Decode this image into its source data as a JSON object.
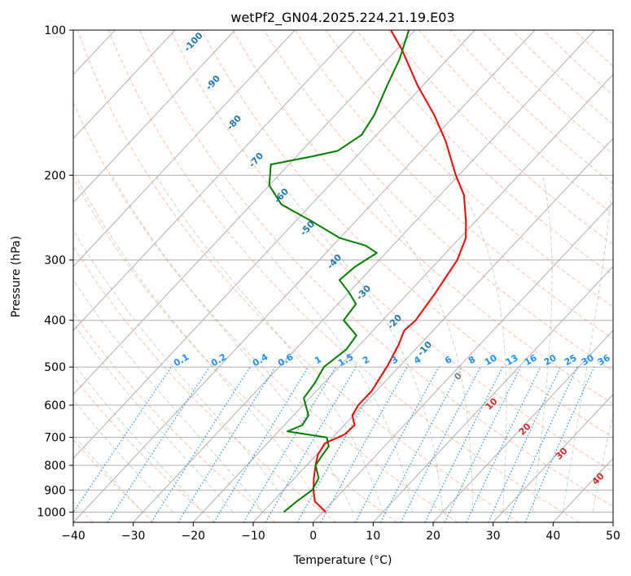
{
  "chart_data": {
    "type": "skew-t",
    "title": "wetPf2_GN04.2025.224.21.19.E03",
    "xlabel": "Temperature (°C)",
    "ylabel": "Pressure (hPa)",
    "xlim": [
      -40,
      50
    ],
    "ylim": [
      1050,
      100
    ],
    "y_scale": "log",
    "x_ticks": [
      -40,
      -30,
      -20,
      -10,
      0,
      10,
      20,
      30,
      40,
      50
    ],
    "y_ticks": [
      100,
      200,
      300,
      400,
      500,
      600,
      700,
      800,
      900,
      1000
    ],
    "grid": true,
    "temperature": {
      "color": "#ff0000",
      "points": [
        {
          "p": 1000,
          "t": 0.5
        },
        {
          "p": 950,
          "t": -3.0
        },
        {
          "p": 900,
          "t": -5.0
        },
        {
          "p": 850,
          "t": -6.8
        },
        {
          "p": 800,
          "t": -8.5
        },
        {
          "p": 760,
          "t": -9.8
        },
        {
          "p": 720,
          "t": -10.4
        },
        {
          "p": 690,
          "t": -8.5
        },
        {
          "p": 660,
          "t": -8.3
        },
        {
          "p": 630,
          "t": -10.2
        },
        {
          "p": 600,
          "t": -10.8
        },
        {
          "p": 560,
          "t": -10.8
        },
        {
          "p": 500,
          "t": -12.0
        },
        {
          "p": 450,
          "t": -13.5
        },
        {
          "p": 420,
          "t": -14.8
        },
        {
          "p": 400,
          "t": -14.5
        },
        {
          "p": 350,
          "t": -15.5
        },
        {
          "p": 300,
          "t": -17.0
        },
        {
          "p": 270,
          "t": -19.0
        },
        {
          "p": 250,
          "t": -21.5
        },
        {
          "p": 220,
          "t": -26.0
        },
        {
          "p": 200,
          "t": -30.5
        },
        {
          "p": 170,
          "t": -37.5
        },
        {
          "p": 150,
          "t": -43.5
        },
        {
          "p": 130,
          "t": -51.0
        },
        {
          "p": 110,
          "t": -59.0
        },
        {
          "p": 100,
          "t": -64.0
        }
      ]
    },
    "dewpoint": {
      "color": "#008000",
      "points": [
        {
          "p": 1000,
          "t": -6.5
        },
        {
          "p": 950,
          "t": -6.0
        },
        {
          "p": 900,
          "t": -5.2
        },
        {
          "p": 850,
          "t": -6.0
        },
        {
          "p": 800,
          "t": -8.5
        },
        {
          "p": 760,
          "t": -9.0
        },
        {
          "p": 730,
          "t": -9.3
        },
        {
          "p": 700,
          "t": -11.0
        },
        {
          "p": 680,
          "t": -18.5
        },
        {
          "p": 660,
          "t": -17.0
        },
        {
          "p": 630,
          "t": -17.5
        },
        {
          "p": 580,
          "t": -21.0
        },
        {
          "p": 540,
          "t": -21.5
        },
        {
          "p": 500,
          "t": -22.5
        },
        {
          "p": 460,
          "t": -21.5
        },
        {
          "p": 430,
          "t": -22.0
        },
        {
          "p": 400,
          "t": -26.5
        },
        {
          "p": 370,
          "t": -27.0
        },
        {
          "p": 350,
          "t": -30.0
        },
        {
          "p": 330,
          "t": -33.5
        },
        {
          "p": 310,
          "t": -33.0
        },
        {
          "p": 290,
          "t": -31.5
        },
        {
          "p": 280,
          "t": -34.5
        },
        {
          "p": 270,
          "t": -40.0
        },
        {
          "p": 250,
          "t": -47.0
        },
        {
          "p": 230,
          "t": -55.0
        },
        {
          "p": 210,
          "t": -60.0
        },
        {
          "p": 190,
          "t": -63.0
        },
        {
          "p": 183,
          "t": -57.5
        },
        {
          "p": 178,
          "t": -54.0
        },
        {
          "p": 165,
          "t": -52.5
        },
        {
          "p": 150,
          "t": -53.5
        },
        {
          "p": 130,
          "t": -56.0
        },
        {
          "p": 115,
          "t": -58.0
        },
        {
          "p": 100,
          "t": -61.0
        }
      ]
    },
    "isotherm_labels": [
      "-100",
      "-90",
      "-80",
      "-70",
      "-60",
      "-50",
      "-40",
      "-30",
      "-20",
      "-10"
    ],
    "mixing_ratio_labels": [
      "0.1",
      "0.2",
      "0.4",
      "0.6",
      "1",
      "1.5",
      "2",
      "3",
      "4",
      "6",
      "8",
      "10",
      "13",
      "16",
      "20",
      "25",
      "30",
      "36"
    ],
    "moist_adiabat_labels": [
      "0",
      "10",
      "20",
      "30",
      "40"
    ],
    "colors": {
      "isotherm_label": "#1f77b4",
      "mixing_ratio": "#1e90ff",
      "moist_adiabat_label": "#d62728",
      "zero_label": "#808080",
      "dry_adiabat": "#ff8c69",
      "moist_adiabat": "#8fbc8f",
      "grid": "#b0b0b0"
    }
  }
}
